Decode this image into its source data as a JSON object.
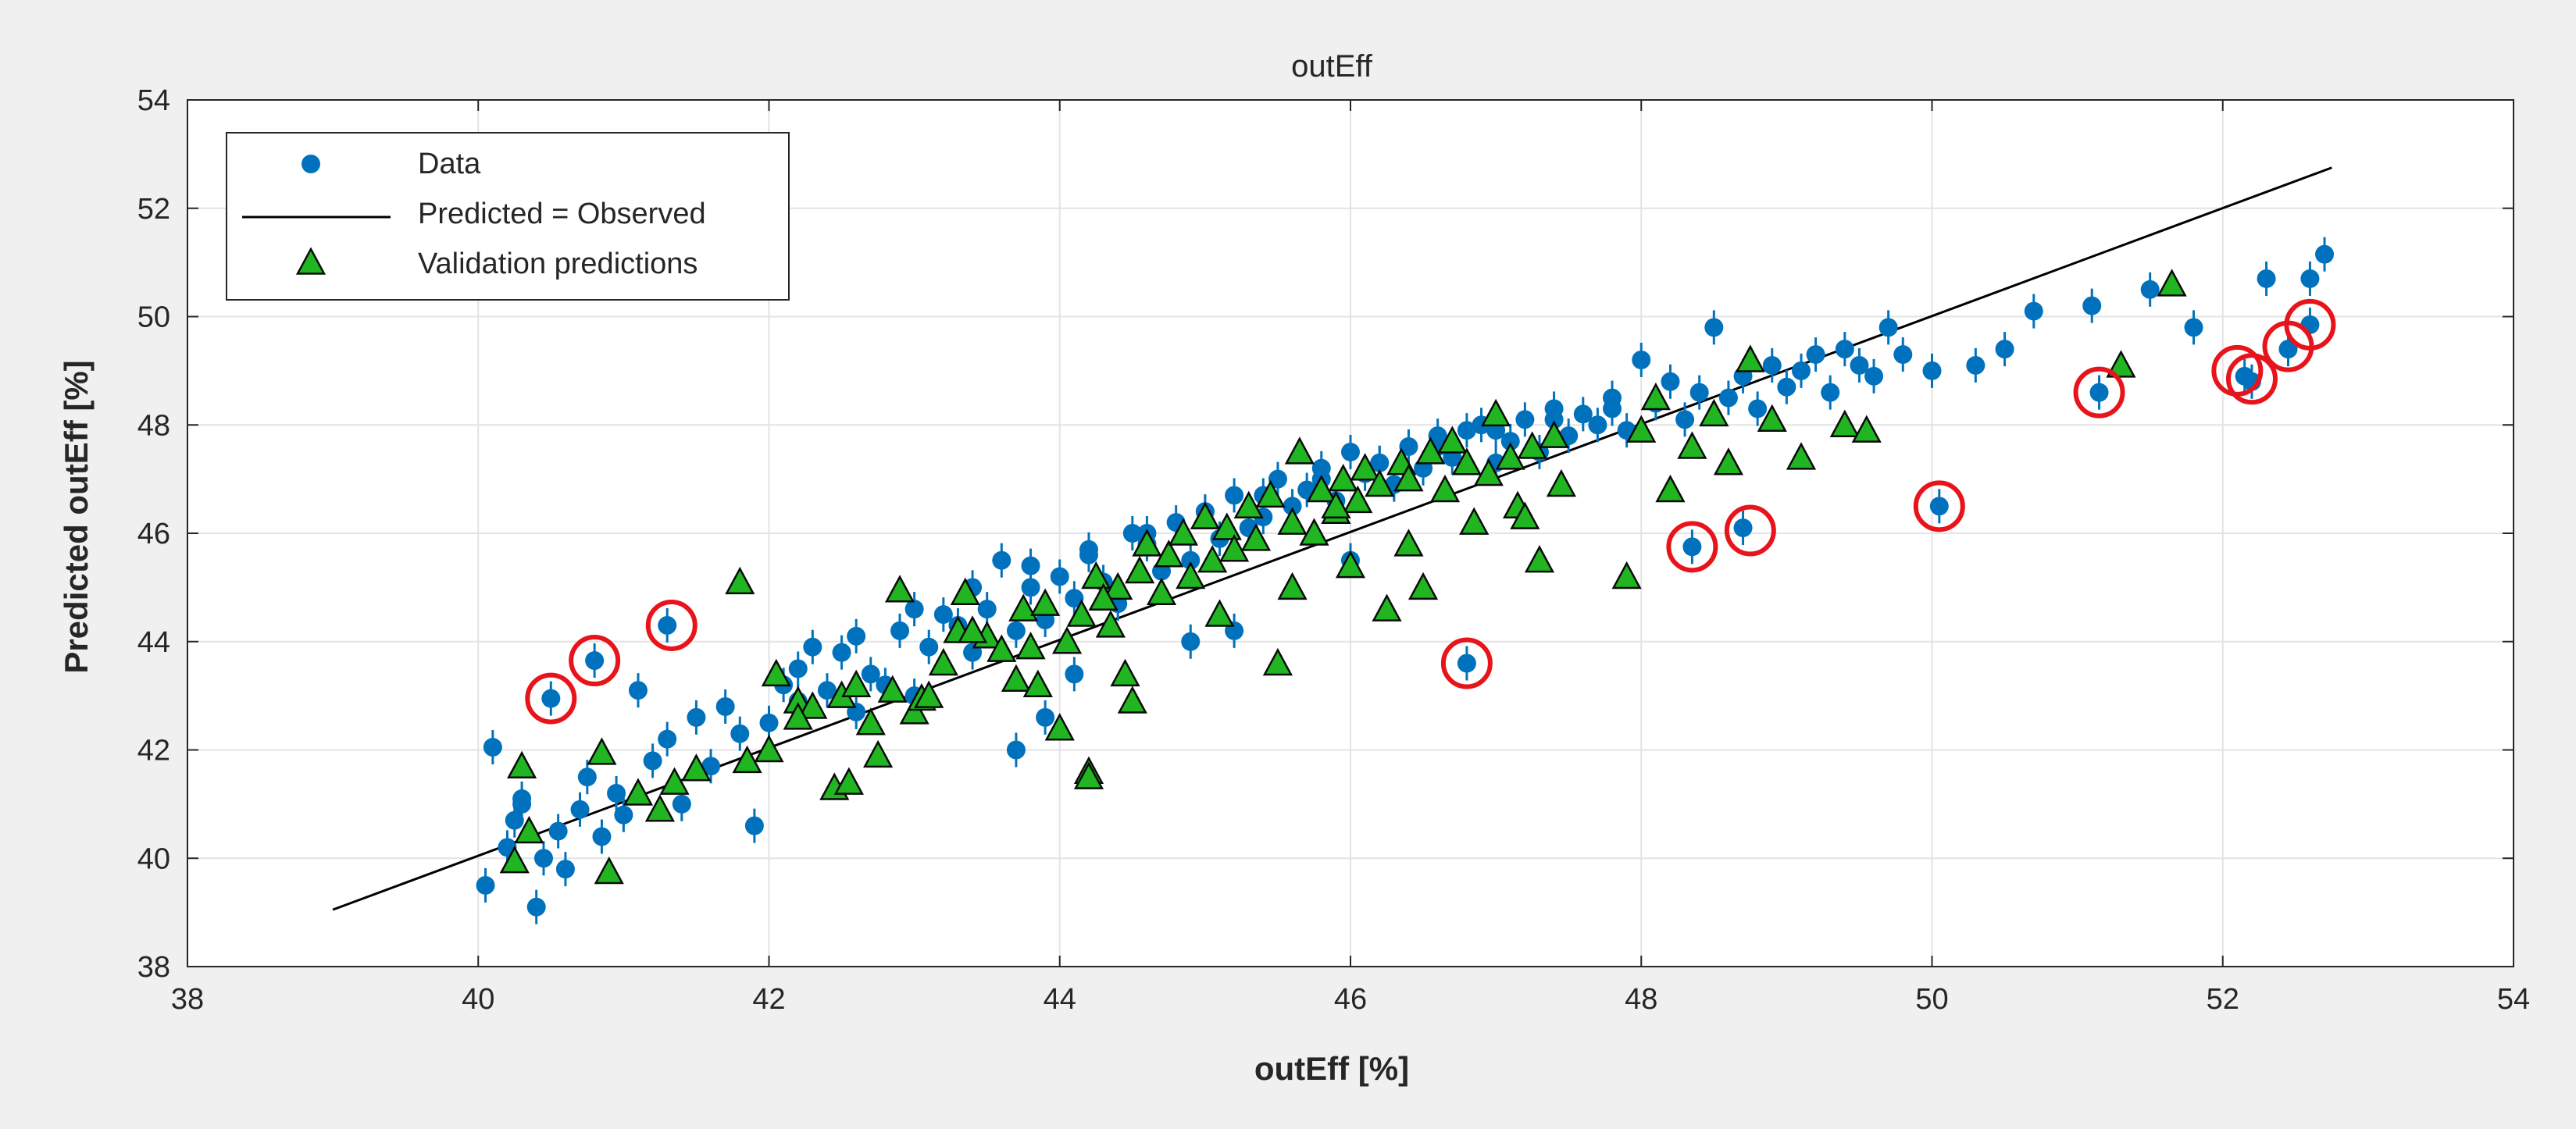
{
  "chart_data": {
    "type": "scatter",
    "title": "outEff",
    "xlabel": "outEff [%]",
    "ylabel": "Predicted outEff [%]",
    "xlim": [
      38,
      54
    ],
    "ylim": [
      38,
      54
    ],
    "xticks": [
      "38",
      "40",
      "42",
      "44",
      "46",
      "48",
      "50",
      "52",
      "54"
    ],
    "yticks": [
      "38",
      "40",
      "42",
      "44",
      "46",
      "48",
      "50",
      "52",
      "54"
    ],
    "grid": true,
    "legend_position": "top-left",
    "legend": [
      "Data",
      "Predicted = Observed",
      "Validation predictions"
    ],
    "colors": {
      "data": "#0072bd",
      "line": "#000000",
      "validation": "#21b521",
      "outlier_circle": "#e8141b"
    },
    "reference_line": {
      "name": "Predicted = Observed",
      "x": [
        39.0,
        52.75
      ],
      "y": [
        39.05,
        52.75
      ]
    },
    "series": [
      {
        "name": "Data",
        "marker": "circle",
        "x": [
          40.05,
          40.1,
          40.2,
          40.25,
          40.3,
          40.4,
          40.45,
          40.55,
          40.6,
          40.7,
          40.75,
          40.85,
          40.95,
          41.0,
          41.1,
          41.2,
          41.3,
          41.4,
          41.5,
          41.6,
          41.7,
          41.8,
          41.9,
          42.0,
          42.1,
          42.2,
          42.3,
          42.4,
          42.5,
          42.6,
          42.7,
          42.8,
          42.9,
          43.0,
          43.1,
          43.2,
          43.3,
          43.4,
          43.5,
          43.6,
          43.7,
          43.8,
          43.9,
          44.0,
          44.1,
          44.2,
          44.3,
          44.4,
          44.5,
          44.6,
          44.7,
          44.8,
          44.9,
          45.0,
          45.1,
          45.2,
          45.3,
          45.4,
          45.5,
          45.6,
          45.7,
          45.8,
          45.9,
          46.0,
          46.1,
          46.2,
          46.3,
          46.4,
          46.5,
          46.6,
          46.7,
          46.8,
          46.9,
          47.0,
          47.1,
          47.2,
          47.3,
          47.4,
          47.5,
          47.6,
          47.7,
          47.8,
          47.9,
          48.0,
          48.1,
          48.2,
          48.3,
          48.4,
          48.5,
          48.6,
          48.7,
          48.8,
          48.9,
          49.0,
          49.1,
          49.2,
          49.3,
          49.4,
          49.5,
          49.6,
          49.7,
          49.8,
          50.0,
          50.3,
          50.5,
          50.7,
          51.1,
          51.5,
          51.8,
          52.3,
          52.6,
          52.7,
          40.3,
          40.5,
          40.8,
          41.3,
          46.8,
          48.35,
          48.7,
          50.05,
          51.15,
          52.15,
          52.2,
          52.45,
          52.6,
          42.2,
          42.6,
          43.0,
          43.4,
          43.8,
          44.2,
          44.6,
          45.0,
          45.4,
          45.8,
          46.2,
          46.6,
          47.0,
          47.4,
          47.8,
          44.1,
          43.7,
          45.2,
          46.0,
          44.9,
          43.9
        ],
        "y": [
          39.5,
          42.05,
          40.2,
          40.7,
          41.0,
          39.1,
          40.0,
          40.5,
          39.8,
          40.9,
          41.5,
          40.4,
          41.2,
          40.8,
          43.1,
          41.8,
          42.2,
          41.0,
          42.6,
          41.7,
          42.8,
          42.3,
          40.6,
          42.5,
          43.2,
          42.9,
          43.9,
          43.1,
          43.8,
          42.7,
          43.4,
          43.2,
          44.2,
          43.0,
          43.9,
          44.5,
          44.3,
          43.8,
          44.6,
          45.5,
          44.2,
          45.0,
          44.4,
          45.2,
          44.8,
          45.6,
          45.1,
          44.7,
          46.0,
          45.8,
          45.3,
          46.2,
          45.5,
          46.4,
          45.9,
          46.7,
          46.1,
          46.3,
          47.0,
          46.5,
          46.8,
          47.2,
          46.6,
          47.5,
          47.1,
          47.3,
          46.9,
          47.6,
          47.2,
          47.8,
          47.4,
          47.9,
          48.0,
          47.3,
          47.7,
          48.1,
          47.5,
          48.3,
          47.8,
          48.2,
          48.0,
          48.5,
          47.9,
          49.2,
          48.4,
          48.8,
          48.1,
          48.6,
          49.8,
          48.5,
          48.9,
          48.3,
          49.1,
          48.7,
          49.0,
          49.3,
          48.6,
          49.4,
          49.1,
          48.9,
          49.8,
          49.3,
          49.0,
          49.1,
          49.4,
          50.1,
          50.2,
          50.5,
          49.8,
          50.7,
          50.7,
          51.15,
          41.1,
          42.95,
          43.65,
          44.3,
          43.6,
          45.75,
          46.1,
          46.5,
          48.6,
          48.9,
          48.8,
          49.4,
          49.85,
          43.5,
          44.1,
          44.6,
          45.0,
          45.4,
          45.7,
          46.0,
          46.4,
          46.7,
          47.0,
          47.3,
          47.6,
          47.9,
          48.1,
          48.3,
          43.4,
          42.0,
          44.2,
          45.5,
          44.0,
          42.6
        ]
      },
      {
        "name": "Validation predictions",
        "marker": "triangle",
        "x": [
          40.25,
          40.35,
          40.3,
          40.9,
          40.85,
          41.1,
          41.25,
          41.35,
          41.5,
          41.8,
          41.85,
          42.0,
          42.05,
          42.2,
          42.3,
          42.45,
          42.5,
          42.55,
          42.7,
          42.75,
          42.85,
          42.9,
          43.0,
          43.05,
          43.2,
          43.3,
          43.35,
          43.5,
          43.6,
          43.7,
          43.75,
          43.85,
          43.9,
          44.0,
          44.05,
          44.15,
          44.2,
          44.25,
          44.35,
          44.4,
          44.45,
          44.55,
          44.6,
          44.7,
          44.75,
          44.85,
          44.9,
          45.0,
          45.05,
          45.15,
          45.2,
          45.3,
          45.35,
          45.45,
          45.5,
          45.6,
          45.65,
          45.75,
          45.8,
          45.9,
          45.95,
          46.05,
          46.1,
          46.2,
          46.25,
          46.35,
          46.4,
          46.5,
          46.55,
          46.65,
          46.7,
          46.8,
          46.85,
          46.95,
          47.0,
          47.1,
          47.15,
          47.25,
          47.3,
          47.4,
          47.45,
          47.9,
          48.0,
          48.1,
          48.2,
          48.35,
          48.5,
          48.6,
          48.75,
          48.9,
          49.1,
          49.4,
          49.55,
          51.3,
          51.65,
          42.6,
          43.1,
          43.8,
          44.3,
          45.1,
          45.6,
          46.4,
          47.2,
          44.5,
          43.4,
          45.9,
          46.0,
          42.2,
          44.2
        ],
        "y": [
          39.95,
          40.5,
          41.7,
          39.75,
          41.95,
          41.2,
          40.9,
          41.4,
          41.65,
          45.1,
          41.8,
          42.0,
          43.4,
          42.9,
          42.8,
          41.3,
          43.0,
          41.4,
          42.5,
          41.9,
          43.1,
          44.95,
          42.7,
          42.95,
          43.6,
          44.2,
          44.9,
          44.1,
          43.85,
          43.3,
          44.6,
          43.2,
          44.7,
          42.4,
          44.0,
          44.5,
          41.6,
          45.2,
          44.3,
          45.0,
          43.4,
          45.3,
          45.8,
          44.9,
          45.6,
          46.0,
          45.2,
          46.3,
          45.5,
          46.1,
          45.7,
          46.5,
          45.9,
          46.7,
          43.6,
          46.2,
          47.5,
          46.0,
          46.8,
          46.4,
          47.0,
          46.6,
          47.2,
          46.9,
          44.6,
          47.3,
          47.0,
          45.0,
          47.5,
          46.8,
          47.7,
          47.3,
          46.2,
          47.1,
          48.2,
          47.4,
          46.5,
          47.6,
          45.5,
          47.8,
          46.9,
          45.2,
          47.9,
          48.5,
          46.8,
          47.6,
          48.2,
          47.3,
          49.2,
          48.1,
          47.4,
          48.0,
          47.9,
          49.1,
          50.6,
          43.2,
          43.0,
          43.9,
          44.8,
          44.5,
          45.0,
          45.8,
          46.3,
          42.9,
          44.2,
          46.5,
          45.4,
          42.6,
          41.5
        ]
      }
    ],
    "outlier_circles": {
      "x": [
        40.5,
        40.8,
        41.33,
        46.8,
        48.35,
        48.75,
        50.05,
        51.15,
        52.1,
        52.2,
        52.45,
        52.6
      ],
      "y": [
        42.95,
        43.65,
        44.3,
        43.6,
        45.75,
        46.05,
        46.5,
        48.6,
        49.0,
        48.85,
        49.45,
        49.85
      ]
    }
  }
}
